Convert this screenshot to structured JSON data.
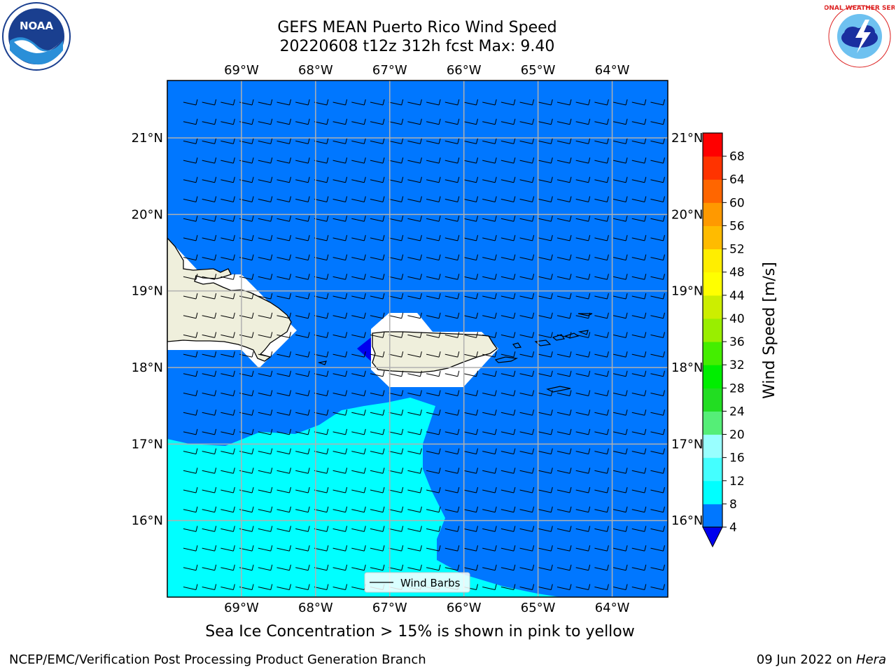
{
  "title": {
    "line1": "GEFS MEAN Puerto Rico Wind Speed",
    "line2": "20220608 t12z 312h fcst   Max: 9.40"
  },
  "logos": {
    "left": "noaa-logo",
    "right": "nws-logo",
    "left_text": "NOAA",
    "right_text": "NATIONAL WEATHER SERVICE"
  },
  "map": {
    "lon_range": [
      -70,
      -63.25
    ],
    "lat_range": [
      15,
      21.75
    ],
    "lon_ticks": [
      "69°W",
      "68°W",
      "67°W",
      "66°W",
      "65°W",
      "64°W"
    ],
    "lon_values": [
      -69,
      -68,
      -67,
      -66,
      -65,
      -64
    ],
    "lat_ticks": [
      "16°N",
      "17°N",
      "18°N",
      "19°N",
      "20°N",
      "21°N"
    ],
    "lat_values": [
      16,
      17,
      18,
      19,
      20,
      21
    ],
    "gridlines": true,
    "land_color": "#efefdc",
    "fill_4_8": "#0077ff",
    "fill_8_12": "#00ffff",
    "fill_below_4": "#0000ee"
  },
  "legend": {
    "label": "Wind Barbs",
    "position": "bottom-center"
  },
  "colorbar": {
    "label": "Wind Speed [m/s]",
    "ticks": [
      "4",
      "8",
      "12",
      "16",
      "20",
      "24",
      "28",
      "32",
      "36",
      "40",
      "44",
      "48",
      "52",
      "56",
      "60",
      "64",
      "68"
    ],
    "colors": [
      "#0077ff",
      "#00ffff",
      "#44ffff",
      "#99ffff",
      "#55ee77",
      "#22dd22",
      "#00ee00",
      "#44ee00",
      "#99ee00",
      "#ccee00",
      "#ffff00",
      "#ffee00",
      "#ffbb00",
      "#ff9900",
      "#ff6600",
      "#ff3300",
      "#ff0000"
    ],
    "under_color": "#0000ee"
  },
  "note": "Sea Ice Concentration > 15% is shown in pink to yellow",
  "footer": {
    "left": "NCEP/EMC/Verification Post Processing Product Generation Branch",
    "right_prefix": "09 Jun 2022 on ",
    "right_machine": "Hera"
  }
}
